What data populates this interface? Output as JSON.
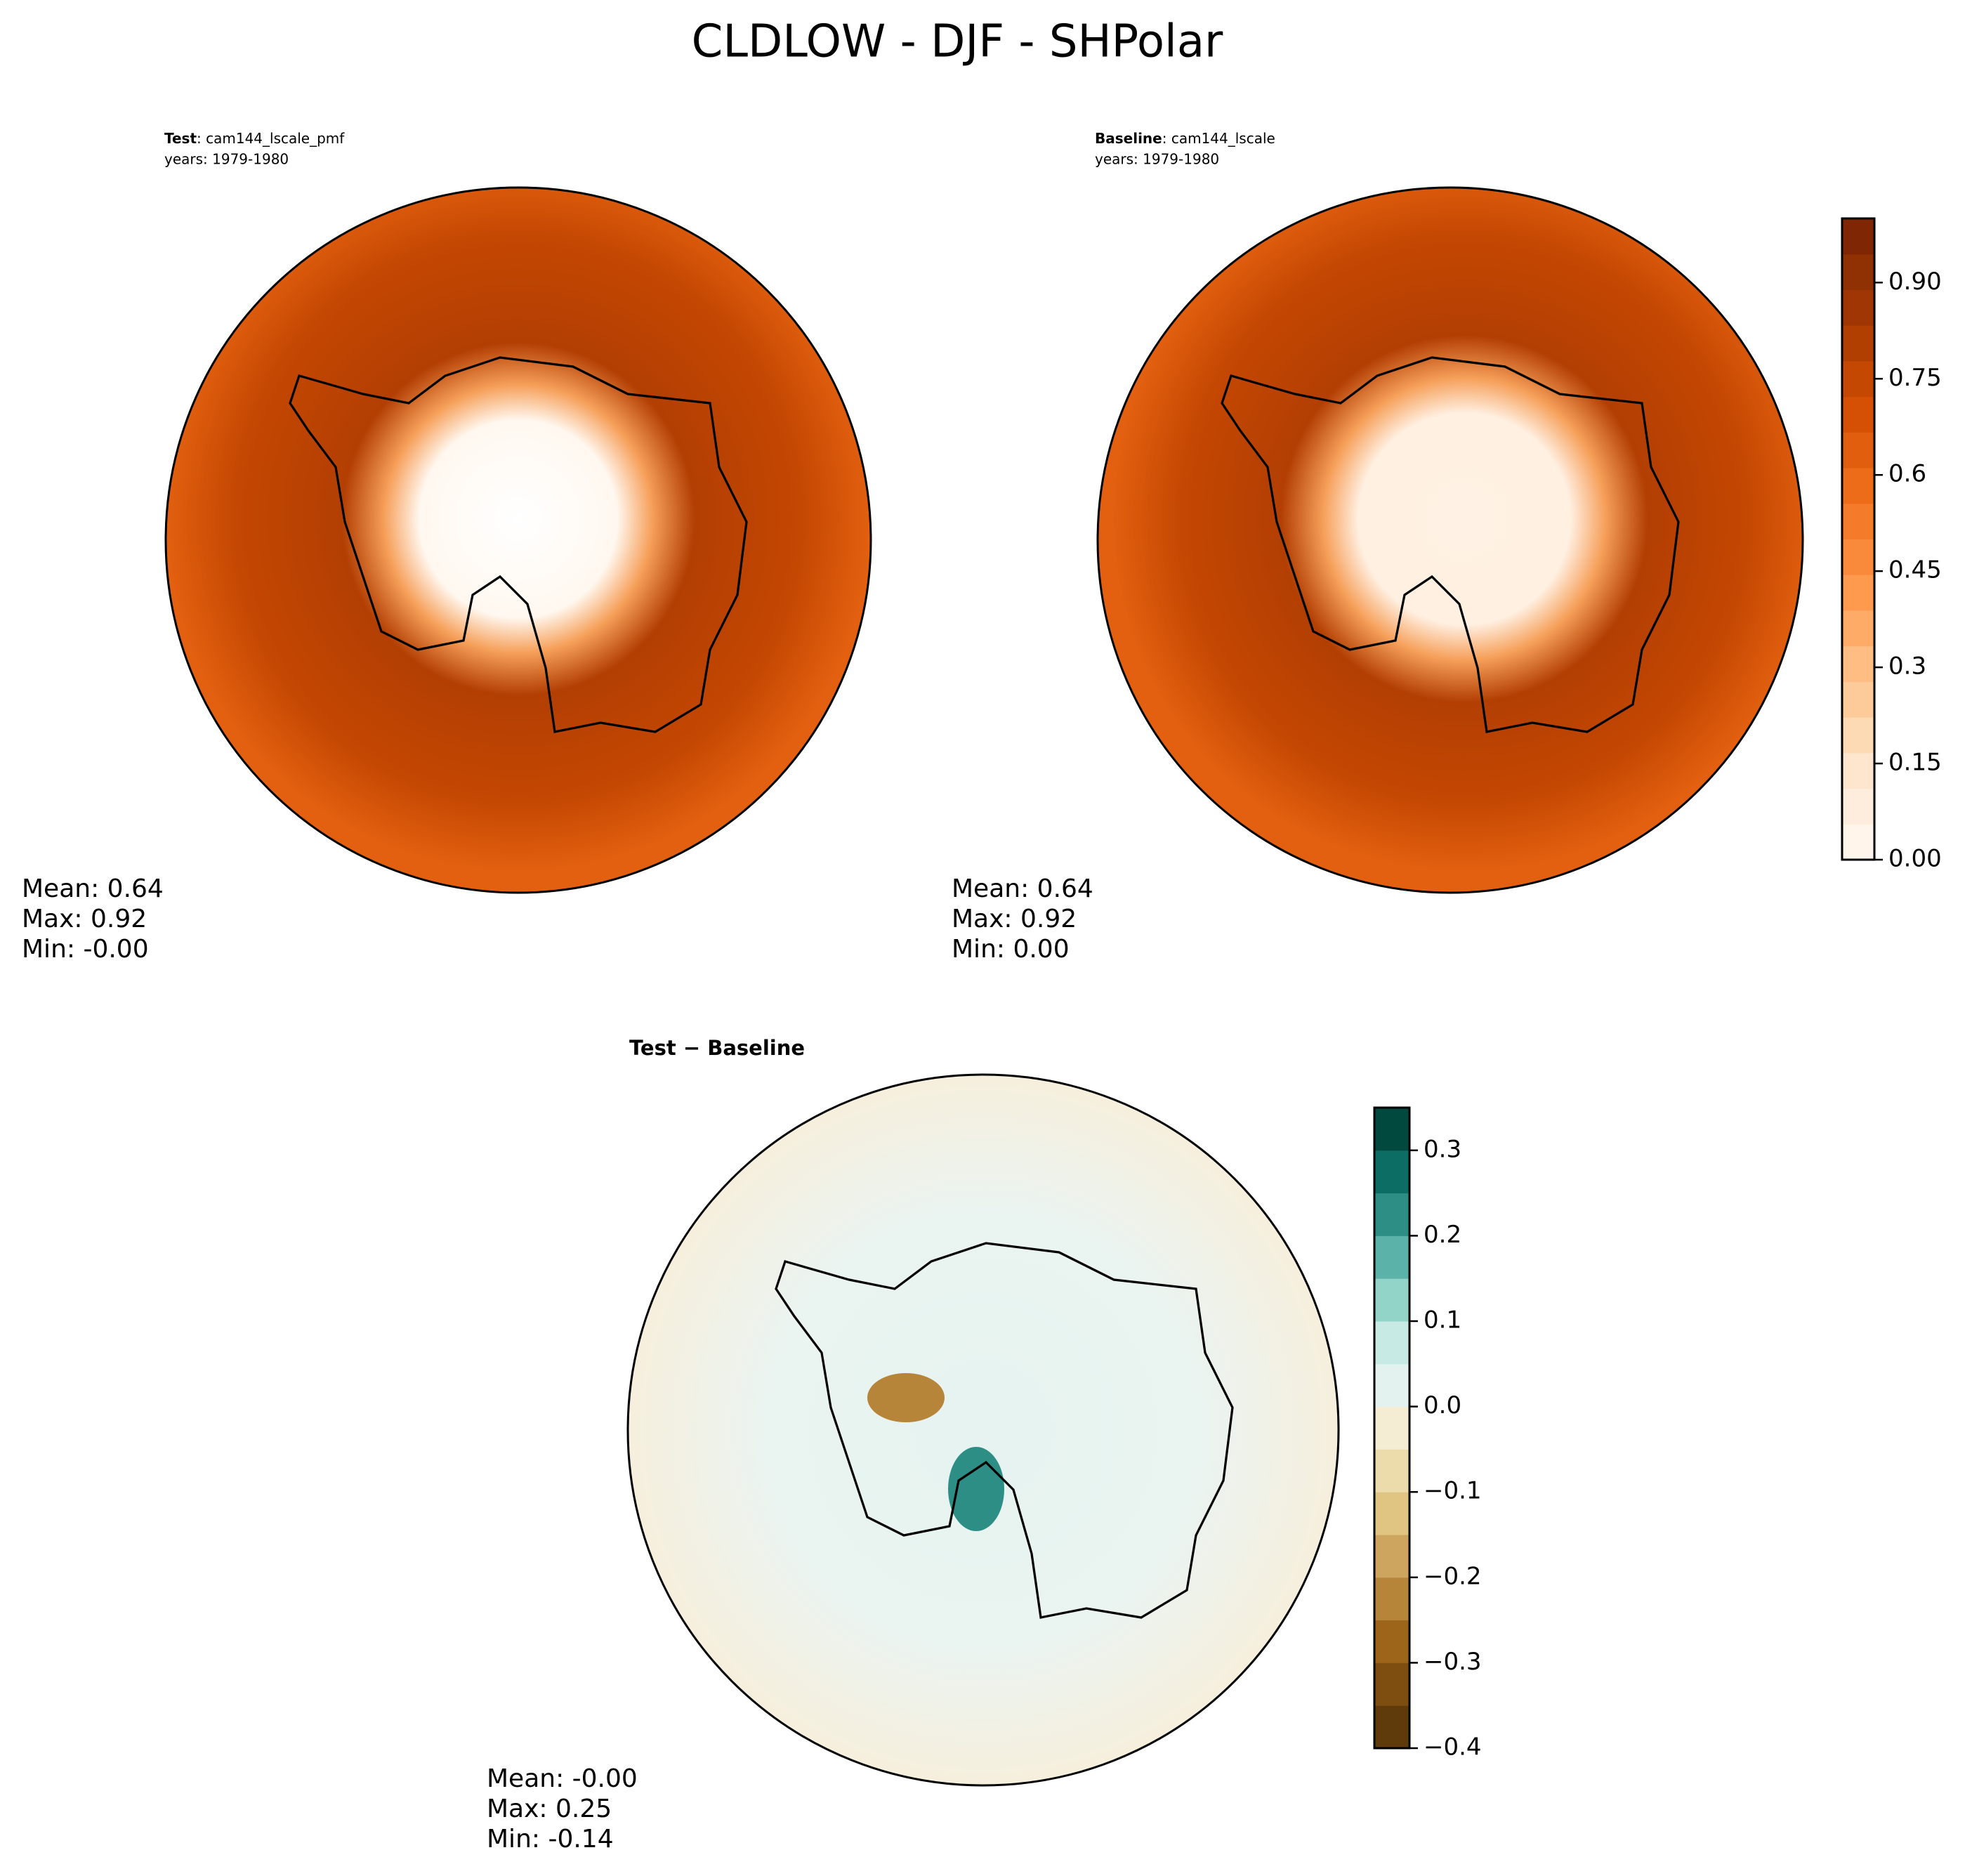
{
  "title": "CLDLOW - DJF - SHPolar",
  "panels": [
    {
      "label_bold": "Test",
      "label_name": ": cam144_lscale_pmf",
      "years": "years: 1979-1980",
      "stats": [
        "Mean:  0.64",
        "Max:  0.92",
        "Min: -0.00"
      ]
    },
    {
      "label_bold": "Baseline",
      "label_name": ": cam144_lscale",
      "years": "years: 1979-1980",
      "stats": [
        "Mean:  0.64",
        "Max:  0.92",
        "Min:  0.00"
      ]
    },
    {
      "label_bold": "Test − Baseline",
      "stats": [
        "Mean: -0.00",
        "Max:  0.25",
        "Min: -0.14"
      ]
    }
  ],
  "colorbars": [
    {
      "lim": [
        0,
        1.0
      ],
      "ticks": [
        {
          "value": 0,
          "label": "0.00"
        },
        0.15,
        0.3,
        0.45,
        0.6,
        0.75,
        {
          "value": 0.9,
          "label": "0.90"
        }
      ],
      "colors": [
        "#fff5eb",
        "#feeddc",
        "#fee6ce",
        "#fdd9b4",
        "#fdcb9a",
        "#fdbd83",
        "#fdab67",
        "#fd9a4e",
        "#fa8a3b",
        "#f47b29",
        "#ec6c19",
        "#e15e0e",
        "#d54f05",
        "#c44702",
        "#b13f02",
        "#a03603",
        "#8f3103",
        "#7f2704"
      ]
    },
    {
      "lim": [
        -0.4,
        0.35
      ],
      "ticks": [
        {
          "value": -0.4,
          "label": "−0.4"
        },
        {
          "value": -0.3,
          "label": "−0.3"
        },
        {
          "value": -0.2,
          "label": "−0.2"
        },
        {
          "value": -0.1,
          "label": "−0.1"
        },
        {
          "value": 0,
          "label": "0.0"
        },
        0.1,
        0.2,
        0.3
      ],
      "colors": [
        "#5f3a0a",
        "#7d4e10",
        "#9c651a",
        "#b7853a",
        "#cda55e",
        "#dfc482",
        "#ecdcab",
        "#f5ecd4",
        "#e3f2ef",
        "#c7eae4",
        "#93d4c9",
        "#5ab2a8",
        "#2d8e86",
        "#0b6d64",
        "#01493f"
      ]
    }
  ]
}
